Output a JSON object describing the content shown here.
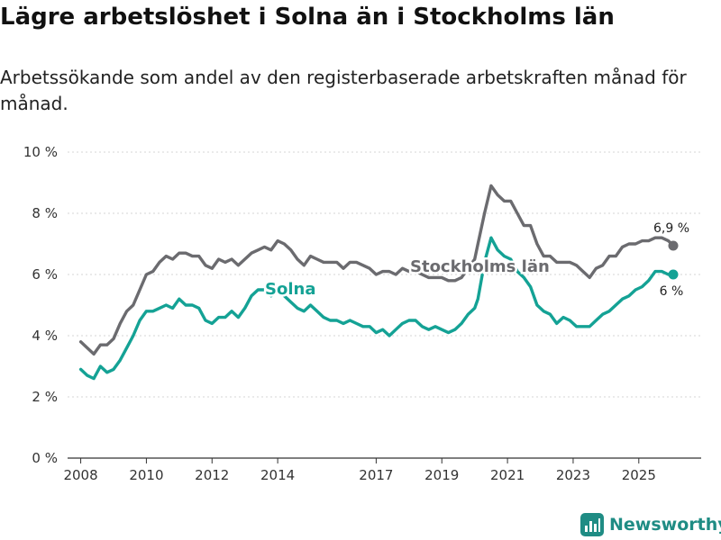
{
  "header": {
    "title": "Lägre arbetslöshet i Solna än i Stockholms län",
    "subtitle": "Arbetssökande som andel av den registerbaserade arbetskraften månad för månad."
  },
  "brand": {
    "name": "Newsworthy",
    "icon": "bar-chart-logo-icon",
    "color": "#1f8c84"
  },
  "chart_data": {
    "type": "line",
    "title": "Lägre arbetslöshet i Solna än i Stockholms län",
    "xlabel": "",
    "ylabel": "",
    "ylim": [
      0,
      10
    ],
    "xlim": [
      2007.6,
      2026.9
    ],
    "grid": true,
    "y_ticks": [
      {
        "value": 0,
        "label": "0 %"
      },
      {
        "value": 2,
        "label": "2 %"
      },
      {
        "value": 4,
        "label": "4 %"
      },
      {
        "value": 6,
        "label": "6 %"
      },
      {
        "value": 8,
        "label": "8 %"
      },
      {
        "value": 10,
        "label": "10 %"
      }
    ],
    "x_ticks": [
      {
        "value": 2008,
        "label": "2008"
      },
      {
        "value": 2010,
        "label": "2010"
      },
      {
        "value": 2012,
        "label": "2012"
      },
      {
        "value": 2014,
        "label": "2014"
      },
      {
        "value": 2017,
        "label": "2017"
      },
      {
        "value": 2019,
        "label": "2019"
      },
      {
        "value": 2021,
        "label": "2021"
      },
      {
        "value": 2023,
        "label": "2023"
      },
      {
        "value": 2025,
        "label": "2025"
      }
    ],
    "series": [
      {
        "name": "Stockholms län",
        "color": "#6b6b6f",
        "end_label": "6,9 %",
        "points": [
          [
            2008.0,
            3.8
          ],
          [
            2008.2,
            3.6
          ],
          [
            2008.4,
            3.4
          ],
          [
            2008.6,
            3.7
          ],
          [
            2008.8,
            3.7
          ],
          [
            2009.0,
            3.9
          ],
          [
            2009.2,
            4.4
          ],
          [
            2009.4,
            4.8
          ],
          [
            2009.6,
            5.0
          ],
          [
            2009.8,
            5.5
          ],
          [
            2010.0,
            6.0
          ],
          [
            2010.2,
            6.1
          ],
          [
            2010.4,
            6.4
          ],
          [
            2010.6,
            6.6
          ],
          [
            2010.8,
            6.5
          ],
          [
            2011.0,
            6.7
          ],
          [
            2011.2,
            6.7
          ],
          [
            2011.4,
            6.6
          ],
          [
            2011.6,
            6.6
          ],
          [
            2011.8,
            6.3
          ],
          [
            2012.0,
            6.2
          ],
          [
            2012.2,
            6.5
          ],
          [
            2012.4,
            6.4
          ],
          [
            2012.6,
            6.5
          ],
          [
            2012.8,
            6.3
          ],
          [
            2013.0,
            6.5
          ],
          [
            2013.2,
            6.7
          ],
          [
            2013.4,
            6.8
          ],
          [
            2013.6,
            6.9
          ],
          [
            2013.8,
            6.8
          ],
          [
            2014.0,
            7.1
          ],
          [
            2014.2,
            7.0
          ],
          [
            2014.4,
            6.8
          ],
          [
            2014.6,
            6.5
          ],
          [
            2014.8,
            6.3
          ],
          [
            2015.0,
            6.6
          ],
          [
            2015.2,
            6.5
          ],
          [
            2015.4,
            6.4
          ],
          [
            2015.6,
            6.4
          ],
          [
            2015.8,
            6.4
          ],
          [
            2016.0,
            6.2
          ],
          [
            2016.2,
            6.4
          ],
          [
            2016.4,
            6.4
          ],
          [
            2016.6,
            6.3
          ],
          [
            2016.8,
            6.2
          ],
          [
            2017.0,
            6.0
          ],
          [
            2017.2,
            6.1
          ],
          [
            2017.4,
            6.1
          ],
          [
            2017.6,
            6.0
          ],
          [
            2017.8,
            6.2
          ],
          [
            2018.0,
            6.1
          ],
          [
            2018.2,
            6.1
          ],
          [
            2018.4,
            6.0
          ],
          [
            2018.6,
            5.9
          ],
          [
            2018.8,
            5.9
          ],
          [
            2019.0,
            5.9
          ],
          [
            2019.2,
            5.8
          ],
          [
            2019.4,
            5.8
          ],
          [
            2019.6,
            5.9
          ],
          [
            2019.8,
            6.2
          ],
          [
            2020.0,
            6.5
          ],
          [
            2020.1,
            7.0
          ],
          [
            2020.3,
            8.0
          ],
          [
            2020.5,
            8.9
          ],
          [
            2020.7,
            8.6
          ],
          [
            2020.9,
            8.4
          ],
          [
            2021.1,
            8.4
          ],
          [
            2021.3,
            8.0
          ],
          [
            2021.5,
            7.6
          ],
          [
            2021.7,
            7.6
          ],
          [
            2021.9,
            7.0
          ],
          [
            2022.1,
            6.6
          ],
          [
            2022.3,
            6.6
          ],
          [
            2022.5,
            6.4
          ],
          [
            2022.7,
            6.4
          ],
          [
            2022.9,
            6.4
          ],
          [
            2023.1,
            6.3
          ],
          [
            2023.3,
            6.1
          ],
          [
            2023.5,
            5.9
          ],
          [
            2023.7,
            6.2
          ],
          [
            2023.9,
            6.3
          ],
          [
            2024.1,
            6.6
          ],
          [
            2024.3,
            6.6
          ],
          [
            2024.5,
            6.9
          ],
          [
            2024.7,
            7.0
          ],
          [
            2024.9,
            7.0
          ],
          [
            2025.1,
            7.1
          ],
          [
            2025.3,
            7.1
          ],
          [
            2025.5,
            7.2
          ],
          [
            2025.7,
            7.2
          ],
          [
            2025.9,
            7.1
          ],
          [
            2026.1,
            6.9
          ]
        ]
      },
      {
        "name": "Solna",
        "color": "#14a295",
        "end_label": "6 %",
        "points": [
          [
            2008.0,
            2.9
          ],
          [
            2008.2,
            2.7
          ],
          [
            2008.4,
            2.6
          ],
          [
            2008.6,
            3.0
          ],
          [
            2008.8,
            2.8
          ],
          [
            2009.0,
            2.9
          ],
          [
            2009.2,
            3.2
          ],
          [
            2009.4,
            3.6
          ],
          [
            2009.6,
            4.0
          ],
          [
            2009.8,
            4.5
          ],
          [
            2010.0,
            4.8
          ],
          [
            2010.2,
            4.8
          ],
          [
            2010.4,
            4.9
          ],
          [
            2010.6,
            5.0
          ],
          [
            2010.8,
            4.9
          ],
          [
            2011.0,
            5.2
          ],
          [
            2011.2,
            5.0
          ],
          [
            2011.4,
            5.0
          ],
          [
            2011.6,
            4.9
          ],
          [
            2011.8,
            4.5
          ],
          [
            2012.0,
            4.4
          ],
          [
            2012.2,
            4.6
          ],
          [
            2012.4,
            4.6
          ],
          [
            2012.6,
            4.8
          ],
          [
            2012.8,
            4.6
          ],
          [
            2013.0,
            4.9
          ],
          [
            2013.2,
            5.3
          ],
          [
            2013.4,
            5.5
          ],
          [
            2013.6,
            5.5
          ],
          [
            2013.8,
            5.3
          ],
          [
            2014.0,
            5.5
          ],
          [
            2014.2,
            5.3
          ],
          [
            2014.4,
            5.1
          ],
          [
            2014.6,
            4.9
          ],
          [
            2014.8,
            4.8
          ],
          [
            2015.0,
            5.0
          ],
          [
            2015.2,
            4.8
          ],
          [
            2015.4,
            4.6
          ],
          [
            2015.6,
            4.5
          ],
          [
            2015.8,
            4.5
          ],
          [
            2016.0,
            4.4
          ],
          [
            2016.2,
            4.5
          ],
          [
            2016.4,
            4.4
          ],
          [
            2016.6,
            4.3
          ],
          [
            2016.8,
            4.3
          ],
          [
            2017.0,
            4.1
          ],
          [
            2017.2,
            4.2
          ],
          [
            2017.4,
            4.0
          ],
          [
            2017.6,
            4.2
          ],
          [
            2017.8,
            4.4
          ],
          [
            2018.0,
            4.5
          ],
          [
            2018.2,
            4.5
          ],
          [
            2018.4,
            4.3
          ],
          [
            2018.6,
            4.2
          ],
          [
            2018.8,
            4.3
          ],
          [
            2019.0,
            4.2
          ],
          [
            2019.2,
            4.1
          ],
          [
            2019.4,
            4.2
          ],
          [
            2019.6,
            4.4
          ],
          [
            2019.8,
            4.7
          ],
          [
            2020.0,
            4.9
          ],
          [
            2020.1,
            5.2
          ],
          [
            2020.3,
            6.4
          ],
          [
            2020.5,
            7.2
          ],
          [
            2020.7,
            6.8
          ],
          [
            2020.9,
            6.6
          ],
          [
            2021.1,
            6.5
          ],
          [
            2021.3,
            6.1
          ],
          [
            2021.5,
            5.9
          ],
          [
            2021.7,
            5.6
          ],
          [
            2021.9,
            5.0
          ],
          [
            2022.1,
            4.8
          ],
          [
            2022.3,
            4.7
          ],
          [
            2022.5,
            4.4
          ],
          [
            2022.7,
            4.6
          ],
          [
            2022.9,
            4.5
          ],
          [
            2023.1,
            4.3
          ],
          [
            2023.3,
            4.3
          ],
          [
            2023.5,
            4.3
          ],
          [
            2023.7,
            4.5
          ],
          [
            2023.9,
            4.7
          ],
          [
            2024.1,
            4.8
          ],
          [
            2024.3,
            5.0
          ],
          [
            2024.5,
            5.2
          ],
          [
            2024.7,
            5.3
          ],
          [
            2024.9,
            5.5
          ],
          [
            2025.1,
            5.6
          ],
          [
            2025.3,
            5.8
          ],
          [
            2025.5,
            6.1
          ],
          [
            2025.7,
            6.1
          ],
          [
            2025.9,
            6.0
          ],
          [
            2026.1,
            6.0
          ]
        ]
      }
    ]
  }
}
